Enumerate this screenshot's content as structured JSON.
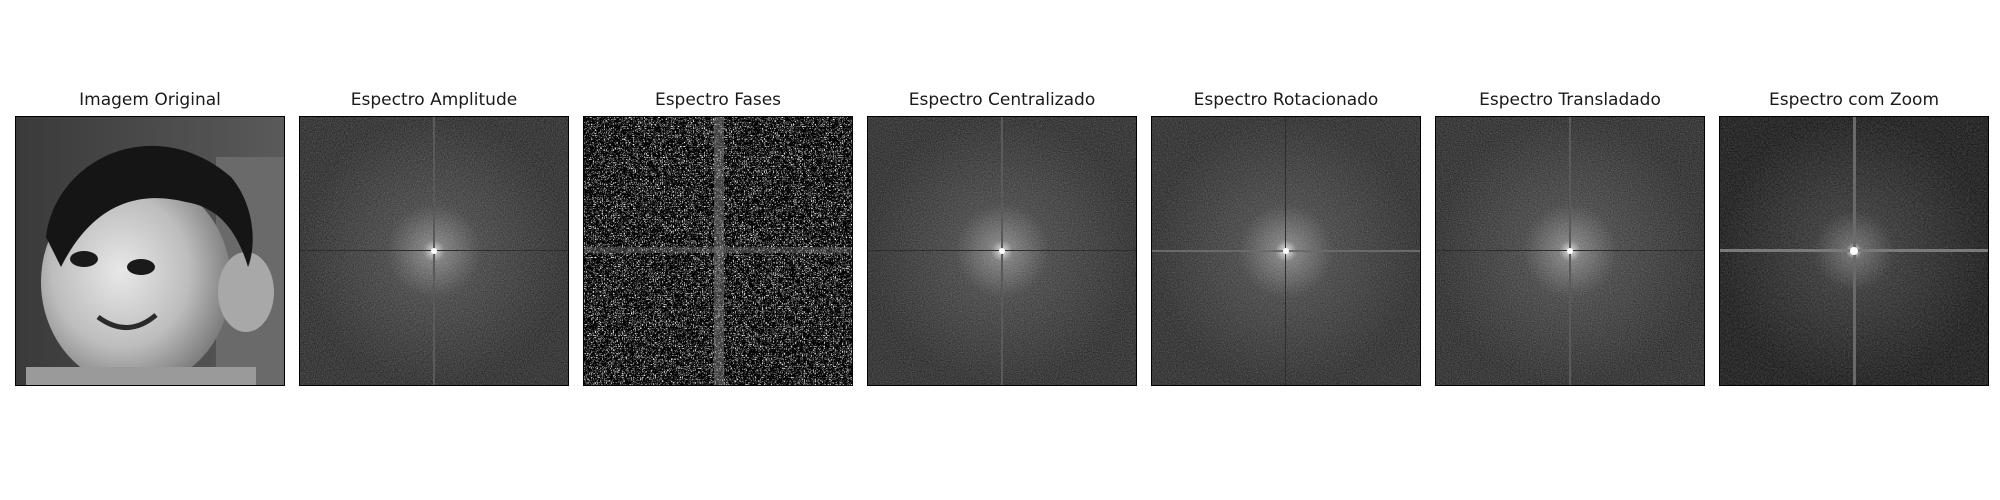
{
  "panels": [
    {
      "title": "Imagem Original",
      "kind": "photo"
    },
    {
      "title": "Espectro Amplitude",
      "kind": "spectrum"
    },
    {
      "title": "Espectro Fases",
      "kind": "phase"
    },
    {
      "title": "Espectro Centralizado",
      "kind": "spectrum"
    },
    {
      "title": "Espectro Rotacionado",
      "kind": "spectrum-h"
    },
    {
      "title": "Espectro Transladado",
      "kind": "spectrum"
    },
    {
      "title": "Espectro com Zoom",
      "kind": "zoom"
    }
  ]
}
